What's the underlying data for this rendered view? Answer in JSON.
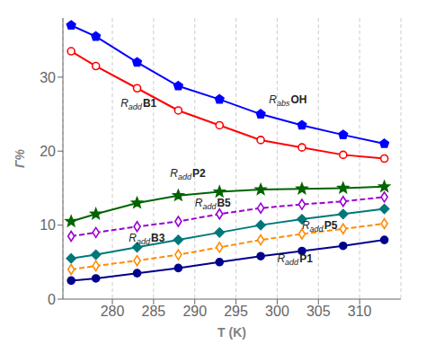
{
  "chart_data": {
    "type": "line",
    "x": [
      275,
      278,
      283,
      288,
      293,
      298,
      303,
      308,
      313
    ],
    "series": [
      {
        "color": "#0000FF",
        "marker": "pentagon",
        "line_style": "solid",
        "values": [
          37.0,
          35.5,
          32.0,
          28.8,
          27.0,
          25.0,
          23.5,
          22.2,
          21.0
        ]
      },
      {
        "color": "#FF0000",
        "marker": "circle_open",
        "line_style": "solid",
        "values": [
          33.5,
          31.5,
          28.5,
          25.5,
          23.5,
          21.5,
          20.5,
          19.5,
          19.0
        ]
      },
      {
        "color": "#006400",
        "marker": "star",
        "line_style": "solid",
        "values": [
          10.5,
          11.5,
          13.0,
          14.0,
          14.5,
          14.8,
          14.9,
          15.0,
          15.2
        ]
      },
      {
        "color": "#9B00D3",
        "marker": "thin_diamond_open",
        "line_style": "dashed",
        "values": [
          8.5,
          9.0,
          9.8,
          10.5,
          11.5,
          12.3,
          12.8,
          13.2,
          13.8
        ]
      },
      {
        "color": "#007878",
        "marker": "diamond",
        "line_style": "solid",
        "values": [
          5.5,
          6.0,
          7.0,
          8.0,
          9.0,
          10.0,
          10.8,
          11.5,
          12.2
        ]
      },
      {
        "color": "#FF8C00",
        "marker": "thin_diamond_open",
        "line_style": "dashed",
        "values": [
          4.0,
          4.5,
          5.2,
          6.0,
          7.0,
          8.0,
          8.8,
          9.5,
          10.2
        ]
      },
      {
        "color": "#00008B",
        "marker": "circle",
        "line_style": "solid",
        "values": [
          2.5,
          2.8,
          3.5,
          4.2,
          5.0,
          5.8,
          6.5,
          7.2,
          8.0
        ]
      }
    ],
    "xlabel": "T (K)",
    "ylabel": "Γ%",
    "xlim": [
      274,
      315
    ],
    "ylim": [
      0,
      38
    ],
    "xticks": [
      280,
      285,
      290,
      295,
      300,
      305,
      310
    ],
    "yticks": [
      0,
      10,
      20,
      30
    ],
    "grid": "x",
    "annotations": [
      {
        "text": "Rabs OH",
        "x": 299,
        "y": 26.5
      },
      {
        "text": "Radd B1",
        "x": 281,
        "y": 26.0
      },
      {
        "text": "Radd P2",
        "x": 287,
        "y": 16.5
      },
      {
        "text": "Radd B5",
        "x": 290,
        "y": 12.5
      },
      {
        "text": "Radd B3",
        "x": 282,
        "y": 7.8
      },
      {
        "text": "Radd P5",
        "x": 303,
        "y": 9.5
      },
      {
        "text": "Radd P1",
        "x": 300,
        "y": 5.0
      }
    ]
  }
}
